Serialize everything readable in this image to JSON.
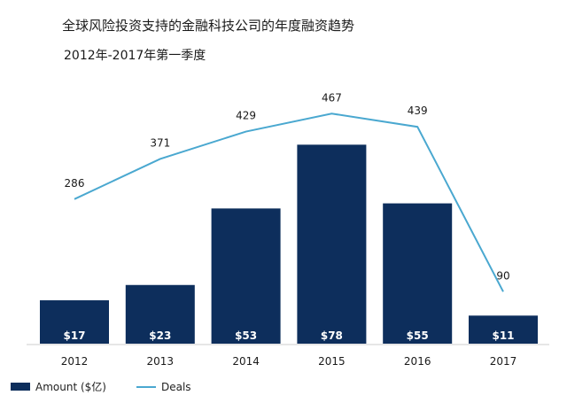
{
  "chart_data": {
    "type": "bar+line",
    "title": "全球风险投资支持的金融科技公司的年度融资趋势",
    "subtitle": "2012年-2017年第一季度",
    "categories": [
      "2012",
      "2013",
      "2014",
      "2015",
      "2016",
      "2017"
    ],
    "series": [
      {
        "name": "Amount ($亿)",
        "kind": "bar",
        "values": [
          17,
          23,
          53,
          78,
          55,
          11
        ],
        "labels": [
          "$17",
          "$23",
          "$53",
          "$78",
          "$55",
          "$11"
        ],
        "color": "#0d2e5c"
      },
      {
        "name": "Deals",
        "kind": "line",
        "values": [
          286,
          371,
          429,
          467,
          439,
          90
        ],
        "labels": [
          "286",
          "371",
          "429",
          "467",
          "439",
          "90"
        ],
        "color": "#4aa8d0"
      }
    ],
    "bar_ylim": [
      0,
      100
    ],
    "line_ylim": [
      -20,
      520
    ],
    "grid": false,
    "legend_position": "bottom-left"
  }
}
